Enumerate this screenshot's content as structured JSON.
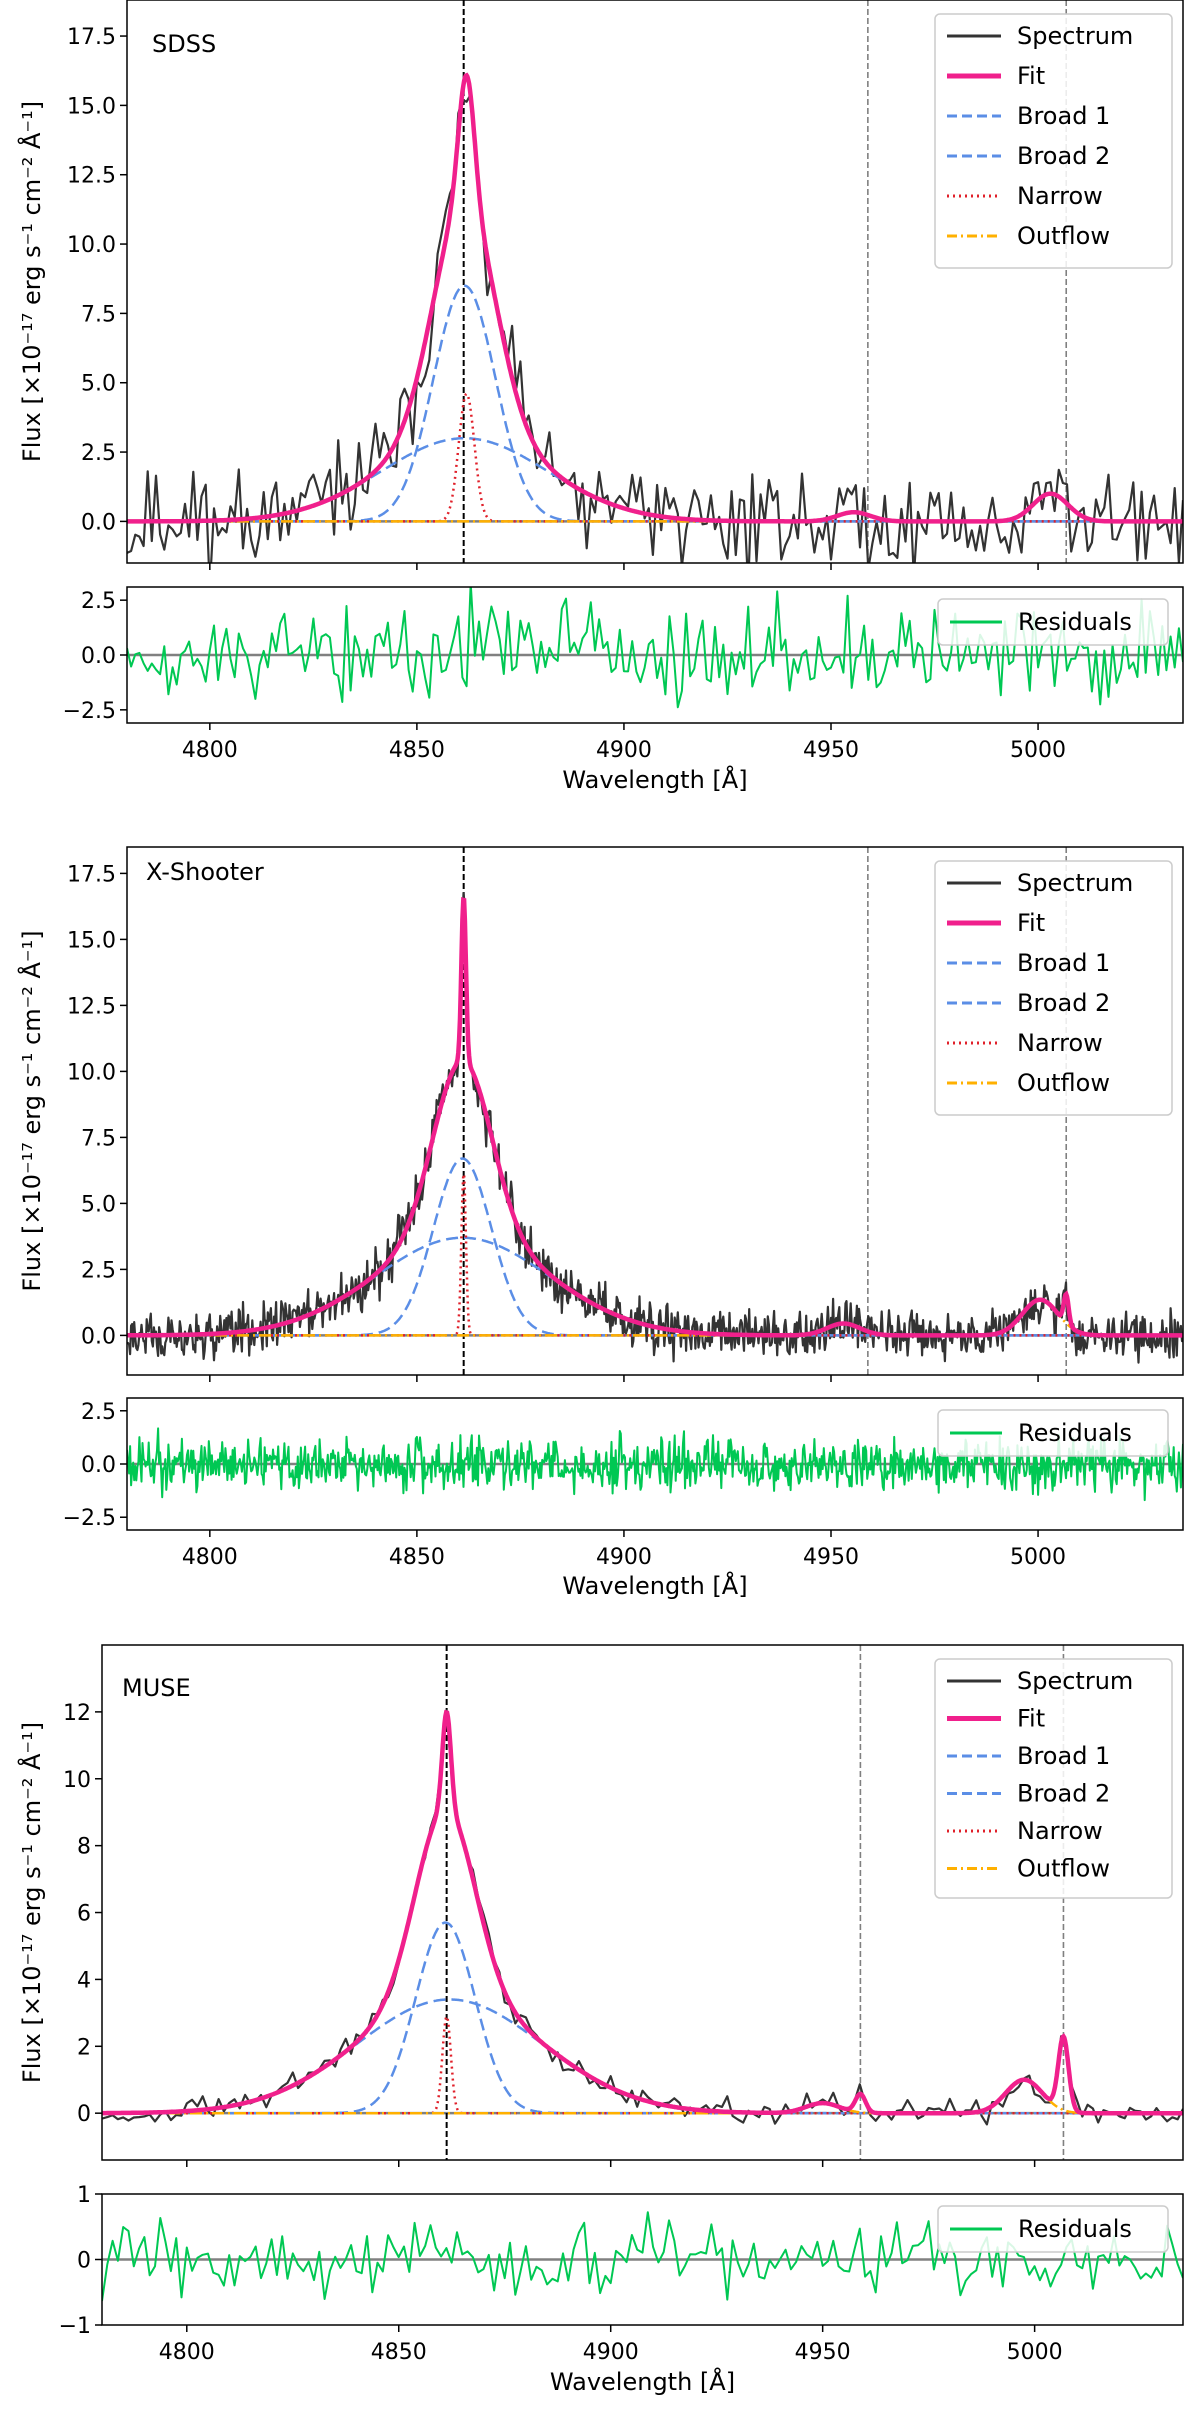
{
  "chart_data": [
    {
      "type": "line",
      "instrument": "SDSS",
      "xlim": [
        4780,
        5035
      ],
      "xticks": [
        4800,
        4850,
        4900,
        4950,
        5000
      ],
      "xtick_labels": [
        "4800",
        "4850",
        "4900",
        "4950",
        "5000"
      ],
      "xlabel": "Wavelength [Å]",
      "ylabel": "Flux [×10⁻¹⁷ erg s⁻¹ cm⁻² Å⁻¹]",
      "flux_ylim": [
        -1.5,
        18.8
      ],
      "flux_yticks": [
        0.0,
        2.5,
        5.0,
        7.5,
        10.0,
        12.5,
        15.0,
        17.5
      ],
      "flux_ytick_labels": [
        "0.0",
        "2.5",
        "5.0",
        "7.5",
        "10.0",
        "12.5",
        "15.0",
        "17.5"
      ],
      "resid_ylim": [
        -3.1,
        3.1
      ],
      "resid_yticks": [
        -2.5,
        0.0,
        2.5
      ],
      "resid_ytick_labels": [
        "−2.5",
        "0.0",
        "2.5"
      ],
      "vlines": [
        4861.3,
        4958.9,
        5006.8
      ],
      "components": {
        "broad1": {
          "center": 4861.5,
          "amplitude": 8.5,
          "sigma": 7.5
        },
        "broad2": {
          "center": 4861.5,
          "amplitude": 3.0,
          "sigma": 20.0
        },
        "narrow": {
          "center": 4862.0,
          "amplitude": 4.6,
          "sigma": 1.9
        },
        "outflow": [
          {
            "center": 4955.5,
            "amplitude": 0.33,
            "sigma": 4.0
          },
          {
            "center": 5003.0,
            "amplitude": 1.0,
            "sigma": 4.2
          }
        ]
      },
      "noise": {
        "flux_sigma": 0.9,
        "resid_sigma": 1.15,
        "step": 1.0,
        "seed": 11
      },
      "legend": [
        "Spectrum",
        "Fit",
        "Broad 1",
        "Broad 2",
        "Narrow",
        "Outflow"
      ],
      "residual_legend": "Residuals"
    },
    {
      "type": "line",
      "instrument": "X-Shooter",
      "xlim": [
        4780,
        5035
      ],
      "xticks": [
        4800,
        4850,
        4900,
        4950,
        5000
      ],
      "xtick_labels": [
        "4800",
        "4850",
        "4900",
        "4950",
        "5000"
      ],
      "xlabel": "Wavelength [Å]",
      "ylabel": "Flux [×10⁻¹⁷ erg s⁻¹ cm⁻² Å⁻¹]",
      "flux_ylim": [
        -1.5,
        18.5
      ],
      "flux_yticks": [
        0.0,
        2.5,
        5.0,
        7.5,
        10.0,
        12.5,
        15.0,
        17.5
      ],
      "flux_ytick_labels": [
        "0.0",
        "2.5",
        "5.0",
        "7.5",
        "10.0",
        "12.5",
        "15.0",
        "17.5"
      ],
      "resid_ylim": [
        -3.1,
        3.1
      ],
      "resid_yticks": [
        -2.5,
        0.0,
        2.5
      ],
      "resid_ytick_labels": [
        "−2.5",
        "0.0",
        "2.5"
      ],
      "vlines": [
        4861.3,
        4958.9,
        5006.8
      ],
      "components": {
        "broad1": {
          "center": 4861.0,
          "amplitude": 6.7,
          "sigma": 7.0
        },
        "broad2": {
          "center": 4861.0,
          "amplitude": 3.7,
          "sigma": 21.0
        },
        "narrow": {
          "center": 4861.3,
          "amplitude": 6.2,
          "sigma": 0.55
        },
        "outflow": [
          {
            "center": 4953.0,
            "amplitude": 0.45,
            "sigma": 4.0
          },
          {
            "center": 5000.5,
            "amplitude": 1.35,
            "sigma": 4.3
          }
        ],
        "extra_narrow": [
          {
            "center": 5006.8,
            "amplitude": 1.1,
            "sigma": 0.6
          }
        ]
      },
      "noise": {
        "flux_sigma": 0.45,
        "resid_sigma": 0.6,
        "step": 0.25,
        "seed": 23
      },
      "legend": [
        "Spectrum",
        "Fit",
        "Broad 1",
        "Broad 2",
        "Narrow",
        "Outflow"
      ],
      "residual_legend": "Residuals"
    },
    {
      "type": "line",
      "instrument": "MUSE",
      "xlim": [
        4780,
        5035
      ],
      "xticks": [
        4800,
        4850,
        4900,
        4950,
        5000
      ],
      "xtick_labels": [
        "4800",
        "4850",
        "4900",
        "4950",
        "5000"
      ],
      "xlabel": "Wavelength [Å]",
      "ylabel": "Flux [×10⁻¹⁷ erg s⁻¹ cm⁻² Å⁻¹]",
      "flux_ylim": [
        -1.4,
        14.0
      ],
      "flux_yticks": [
        0,
        2,
        4,
        6,
        8,
        10,
        12
      ],
      "flux_ytick_labels": [
        "0",
        "2",
        "4",
        "6",
        "8",
        "10",
        "12"
      ],
      "resid_ylim": [
        -1.0,
        1.0
      ],
      "resid_yticks": [
        -1,
        0,
        1
      ],
      "resid_ytick_labels": [
        "−1",
        "0",
        "1"
      ],
      "vlines": [
        4861.3,
        4958.9,
        5006.8
      ],
      "components": {
        "broad1": {
          "center": 4861.0,
          "amplitude": 5.7,
          "sigma": 7.0
        },
        "broad2": {
          "center": 4862.0,
          "amplitude": 3.4,
          "sigma": 22.0
        },
        "narrow": {
          "center": 4861.3,
          "amplitude": 2.9,
          "sigma": 1.0
        },
        "outflow": [
          {
            "center": 4950.0,
            "amplitude": 0.3,
            "sigma": 4.0
          },
          {
            "center": 4997.5,
            "amplitude": 1.0,
            "sigma": 4.3
          }
        ],
        "extra_narrow": [
          {
            "center": 4958.9,
            "amplitude": 0.55,
            "sigma": 1.2
          },
          {
            "center": 5006.8,
            "amplitude": 2.2,
            "sigma": 1.2
          }
        ]
      },
      "noise": {
        "flux_sigma": 0.18,
        "resid_sigma": 0.28,
        "step": 1.25,
        "seed": 37
      },
      "legend": [
        "Spectrum",
        "Fit",
        "Broad 1",
        "Broad 2",
        "Narrow",
        "Outflow"
      ],
      "residual_legend": "Residuals"
    }
  ],
  "colors": {
    "spectrum": "#333333",
    "fit": "#f0208c",
    "broad": "#5b8ee6",
    "narrow": "#e0202a",
    "outflow": "#ffb000",
    "residual": "#00c853",
    "zero_line": "#808080",
    "vline_main": "#000000",
    "vline_other": "#808080"
  }
}
